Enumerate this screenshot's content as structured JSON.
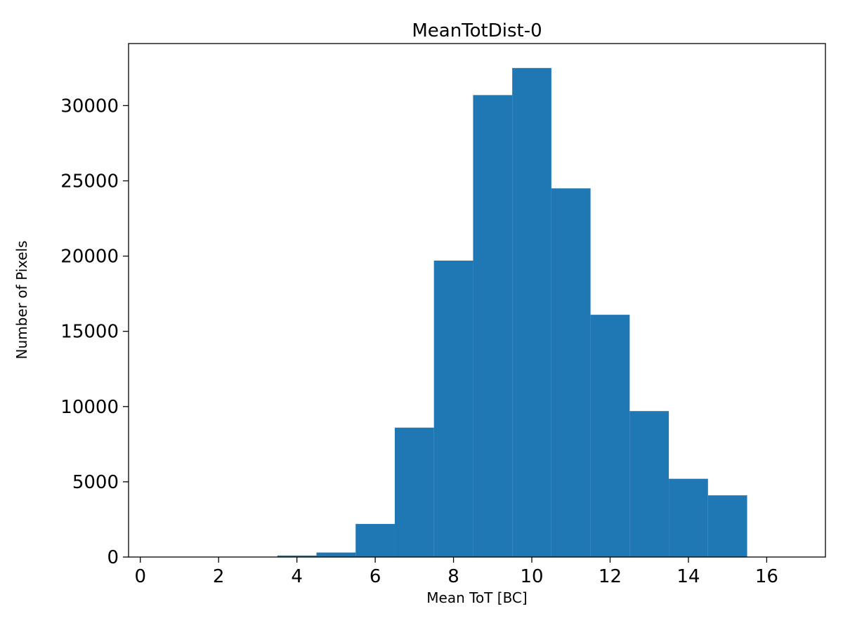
{
  "page": {
    "background": "#ffffff"
  },
  "chart_data": {
    "type": "bar",
    "subtype": "histogram",
    "title": "MeanTotDist-0",
    "xlabel": "Mean ToT [BC]",
    "ylabel": "Number of Pixels",
    "bar_color": "#1f77b4",
    "axis_color": "#000000",
    "bin_width": 1,
    "bin_starts": [
      3.5,
      4.5,
      5.5,
      6.5,
      7.5,
      8.5,
      9.5,
      10.5,
      11.5,
      12.5,
      13.5,
      14.5
    ],
    "values": [
      100,
      300,
      2200,
      8600,
      19700,
      30700,
      32500,
      24500,
      16100,
      9700,
      5200,
      4100
    ],
    "xlim": [
      -0.3,
      17.5
    ],
    "ylim": [
      0,
      34125
    ],
    "xticks": [
      0,
      2,
      4,
      6,
      8,
      10,
      12,
      14,
      16
    ],
    "yticks": [
      0,
      5000,
      10000,
      15000,
      20000,
      25000,
      30000
    ],
    "grid": false,
    "legend": "none"
  }
}
